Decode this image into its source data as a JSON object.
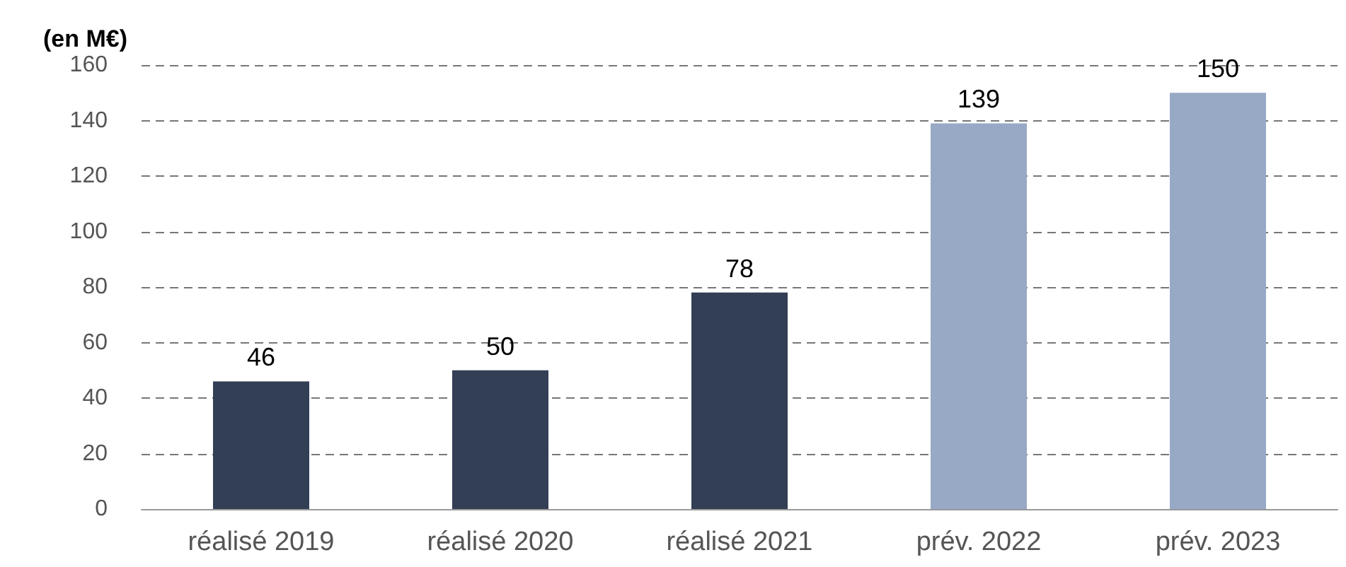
{
  "chart_data": {
    "type": "bar",
    "ylabel": "(en M€)",
    "categories": [
      "réalisé 2019",
      "réalisé 2020",
      "réalisé 2021",
      "prév. 2022",
      "prév. 2023"
    ],
    "values": [
      46,
      50,
      78,
      139,
      150
    ],
    "colors": [
      "#333f55",
      "#333f55",
      "#333f55",
      "#98a9c6",
      "#98a9c6"
    ],
    "ylim": [
      0,
      160
    ],
    "yticks": [
      0,
      20,
      40,
      60,
      80,
      100,
      120,
      140,
      160
    ],
    "grid": "y",
    "data_labels": true
  }
}
